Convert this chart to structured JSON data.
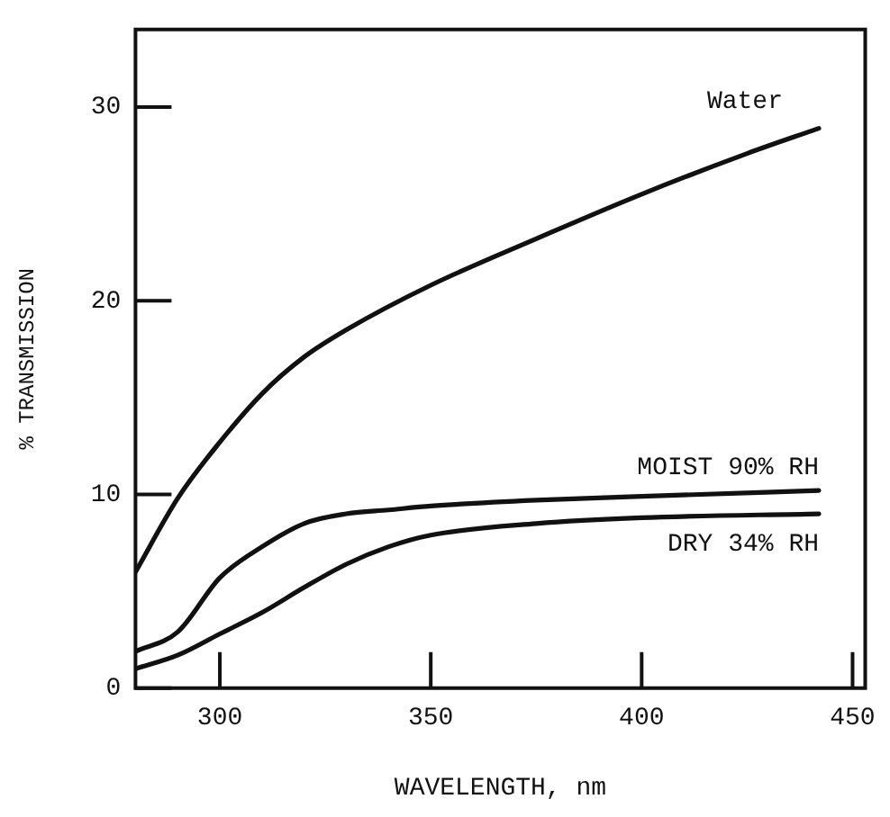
{
  "chart_data": {
    "type": "line",
    "xlabel": "WAVELENGTH, nm",
    "ylabel": "% TRANSMISSION",
    "xlim": [
      280,
      453
    ],
    "xticks": [
      300,
      350,
      400,
      450
    ],
    "ylim": [
      0,
      34
    ],
    "yticks": [
      0,
      10,
      20,
      30
    ],
    "grid": false,
    "legend": false,
    "marker": "none",
    "line_style": "solid",
    "series": [
      {
        "name": "Water",
        "color": "#111111",
        "x": [
          280,
          290,
          300,
          310,
          320,
          330,
          350,
          375,
          400,
          425,
          442
        ],
        "values": [
          6.0,
          9.8,
          12.7,
          15.2,
          17.1,
          18.5,
          20.8,
          23.2,
          25.5,
          27.6,
          28.9
        ]
      },
      {
        "name": "MOIST 90% RH",
        "color": "#111111",
        "x": [
          280,
          290,
          300,
          310,
          320,
          330,
          340,
          350,
          375,
          400,
          442
        ],
        "values": [
          1.9,
          2.9,
          5.7,
          7.3,
          8.5,
          9.0,
          9.2,
          9.4,
          9.7,
          9.9,
          10.2
        ]
      },
      {
        "name": "DRY 34% RH",
        "color": "#111111",
        "x": [
          280,
          290,
          300,
          310,
          320,
          330,
          340,
          350,
          375,
          400,
          442
        ],
        "values": [
          1.0,
          1.7,
          2.8,
          3.9,
          5.2,
          6.4,
          7.3,
          7.9,
          8.5,
          8.8,
          9.0
        ]
      }
    ]
  }
}
